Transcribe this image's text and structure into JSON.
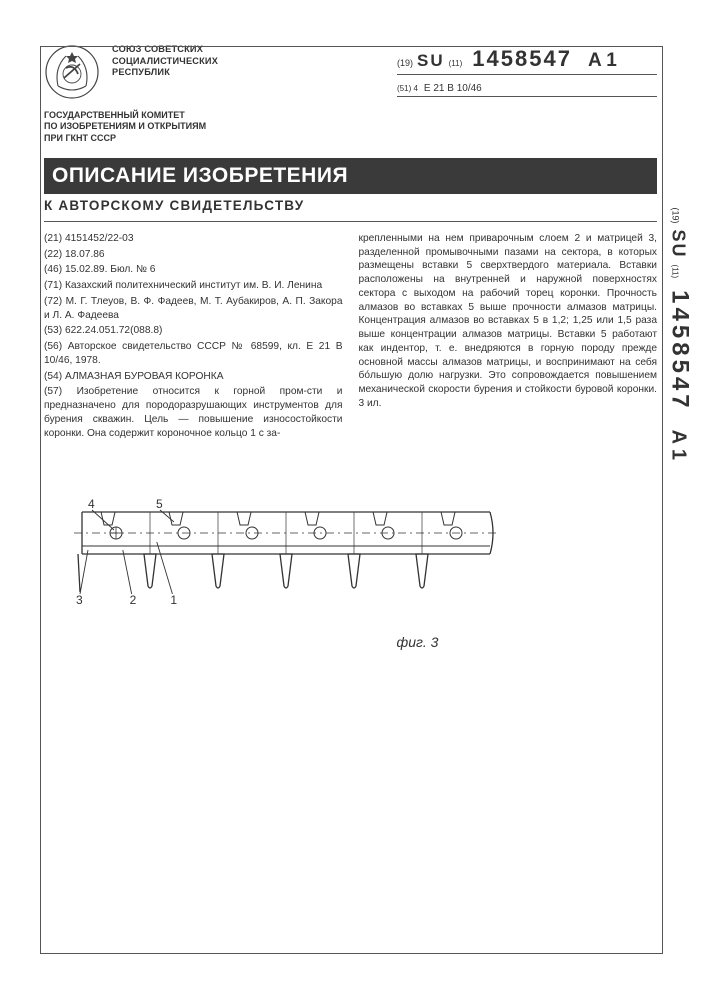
{
  "union": {
    "line1": "СОЮЗ СОВЕТСКИХ",
    "line2": "СОЦИАЛИСТИЧЕСКИХ",
    "line3": "РЕСПУБЛИК"
  },
  "pub": {
    "prefix19": "(19)",
    "su": "SU",
    "prefix11": "(11)",
    "number": "1458547",
    "suffix": "A 1",
    "ipc_prefix": "(51) 4",
    "ipc": "E 21 B 10/46"
  },
  "committee": {
    "line1": "ГОСУДАРСТВЕННЫЙ КОМИТЕТ",
    "line2": "ПО ИЗОБРЕТЕНИЯМ И ОТКРЫТИЯМ",
    "line3": "ПРИ ГКНТ СССР"
  },
  "title": "ОПИСАНИЕ ИЗОБРЕТЕНИЯ",
  "subtitle": "К АВТОРСКОМУ СВИДЕТЕЛЬСТВУ",
  "left": {
    "f21": "(21) 4151452/22-03",
    "f22": "(22) 18.07.86",
    "f46": "(46) 15.02.89. Бюл. № 6",
    "f71": "(71) Казахский политехнический институт им. В. И. Ленина",
    "f72": "(72) М. Г. Тлеуов, В. Ф. Фадеев, М. Т. Аубакиров, А. П. Закора и Л. А. Фадеева",
    "f53": "(53) 622.24.051.72(088.8)",
    "f56": "(56) Авторское свидетельство СССР № 68599, кл. E 21 B 10/46, 1978.",
    "f54": "(54) АЛМАЗНАЯ БУРОВАЯ КОРОНКА",
    "f57": "(57) Изобретение относится к горной пром-сти и предназначено для породоразрушающих инструментов для бурения скважин. Цель — повышение износостойкости коронки. Она содержит короночное кольцо 1 с за-"
  },
  "right": {
    "text": "крепленными на нем приварочным слоем 2 и матрицей 3, разделенной промывочными пазами на сектора, в которых размещены вставки 5 сверхтвердого материала. Вставки расположены на внутренней и наружной поверхностях сектора с выходом на рабочий торец коронки. Прочность алмазов во вставках 5 выше прочности алмазов матрицы. Концентрация алмазов во вставках 5 в 1,2; 1,25 или 1,5 раза выше концентрации алмазов матрицы. Вставки 5 работают как индентор, т. е. внедряются в горную породу прежде основной массы алмазов матрицы, и воспринимают на себя бо́льшую долю нагрузки. Это сопровождается повышением механической скорости бурения и стойкости буровой коронки. 3 ил."
  },
  "figure": {
    "caption": "фиг. 3",
    "labels": {
      "l3": "3",
      "l4": "4",
      "l5": "5",
      "l2": "2",
      "l1": "1"
    },
    "style": {
      "stroke": "#333333",
      "stroke_width": 1.3,
      "segment_count": 6,
      "segment_width": 68,
      "body_height": 42,
      "tooth_height": 32,
      "gap": 0
    }
  }
}
